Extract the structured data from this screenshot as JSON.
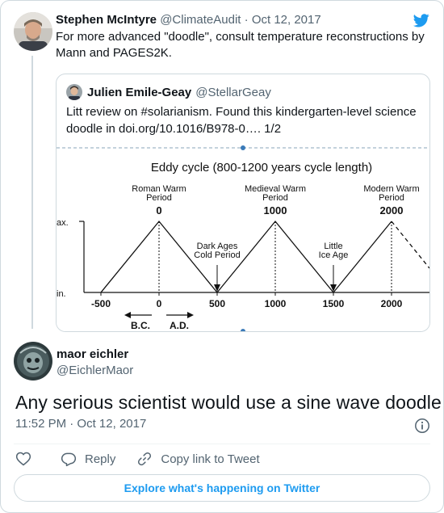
{
  "parent_tweet": {
    "author_name": "Stephen McIntyre",
    "author_handle": "@ClimateAudit",
    "separator": "·",
    "date": "Oct 12, 2017",
    "text": "For more advanced \"doodle\", consult temperature reconstructions by Mann and PAGES2K.",
    "brand_color": "#1d9bf0"
  },
  "quoted_tweet": {
    "author_name": "Julien Emile-Geay",
    "author_handle": "@StellarGeay",
    "text": "Litt review on #solarianism. Found this kindergarten-level science doodle in doi.org/10.1016/B978-0…. 1/2",
    "figure": {
      "title": "Eddy cycle (800-1200 years cycle length)",
      "ymax_label": "ax.",
      "ymin_label": "in.",
      "x_ticks": [
        "-500",
        "0",
        "500",
        "1000",
        "1500",
        "2000"
      ],
      "peak_labels": [
        {
          "line1": "Roman Warm",
          "line2": "Period",
          "year": "0"
        },
        {
          "line1": "Medieval Warm",
          "line2": "Period",
          "year": "1000"
        },
        {
          "line1": "Modern Warm",
          "line2": "Period",
          "year": "2000"
        }
      ],
      "trough_labels": [
        {
          "line1": "Dark Ages",
          "line2": "Cold Period"
        },
        {
          "line1": "Little",
          "line2": "Ice Age"
        }
      ],
      "era_labels": [
        "B.C.",
        "A.D."
      ]
    }
  },
  "reply_tweet": {
    "author_name": "maor eichler",
    "author_handle": "@EichlerMaor",
    "text": "Any serious scientist would use a sine wave doodle...",
    "time": "11:52 PM · Oct 12, 2017"
  },
  "actions": {
    "reply_label": "Reply",
    "copy_label": "Copy link to Tweet"
  },
  "explore_label": "Explore what's happening on Twitter"
}
